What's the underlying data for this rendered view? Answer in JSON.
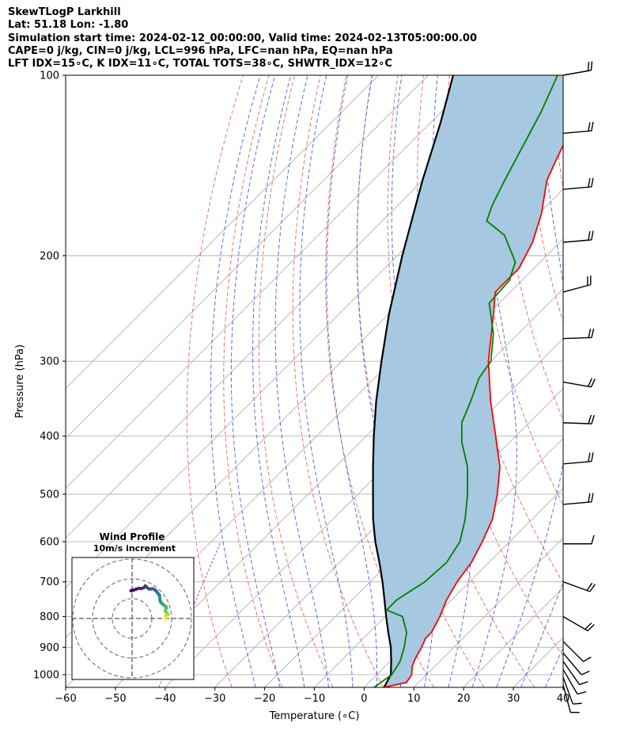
{
  "header": {
    "line1": "SkewTLogP Larkhill",
    "line2": "Lat: 51.18   Lon: -1.80",
    "line3": "Simulation start time: 2024-02-12_00:00:00, Valid time: 2024-02-13T05:00:00.00",
    "line4": "CAPE=0 j/kg, CIN=0 j/kg, LCL=996 hPa, LFC=nan hPa, EQ=nan hPa",
    "line5": "LFT IDX=15∘C, K IDX=11∘C, TOTAL TOTS=38∘C, SHWTR_IDX=12∘C"
  },
  "chart_data": [
    {
      "type": "line",
      "subtype": "skew-t log-p",
      "xlabel": "Temperature (∘C)",
      "ylabel": "Pressure (hPa)",
      "x_ticks": [
        -60,
        -50,
        -40,
        -30,
        -20,
        -10,
        0,
        10,
        20,
        30,
        40
      ],
      "x_tick_labels": [
        "−60",
        "−50",
        "−40",
        "−30",
        "−20",
        "−10",
        "0",
        "10",
        "20",
        "30",
        "40"
      ],
      "y_ticks": [
        100,
        200,
        300,
        400,
        500,
        600,
        700,
        800,
        900,
        1000
      ],
      "xlim": [
        -60,
        40
      ],
      "ylim_hpa": [
        1050,
        100
      ],
      "y_scale": "log",
      "grid": true,
      "series": [
        {
          "name": "temperature",
          "color": "#ff0000",
          "points": [
            [
              1050,
              4.0
            ],
            [
              1030,
              7.5
            ],
            [
              1000,
              7.0
            ],
            [
              970,
              5.5
            ],
            [
              940,
              4.5
            ],
            [
              900,
              3.5
            ],
            [
              870,
              2.5
            ],
            [
              850,
              2.5
            ],
            [
              800,
              1.0
            ],
            [
              750,
              -1.0
            ],
            [
              700,
              -2.5
            ],
            [
              650,
              -3.5
            ],
            [
              600,
              -5.5
            ],
            [
              550,
              -8.0
            ],
            [
              500,
              -12.0
            ],
            [
              450,
              -17.0
            ],
            [
              400,
              -24.0
            ],
            [
              350,
              -32.0
            ],
            [
              300,
              -40.5
            ],
            [
              250,
              -49.0
            ],
            [
              230,
              -53.0
            ],
            [
              210,
              -53.0
            ],
            [
              190,
              -55.5
            ],
            [
              170,
              -59.5
            ],
            [
              150,
              -65.0
            ],
            [
              140,
              -67.0
            ],
            [
              130,
              -69.0
            ],
            [
              120,
              -72.0
            ],
            [
              110,
              -76.0
            ],
            [
              100,
              -79.0
            ]
          ]
        },
        {
          "name": "dewpoint",
          "color": "#008000",
          "points": [
            [
              1050,
              2.0
            ],
            [
              1000,
              3.0
            ],
            [
              950,
              2.0
            ],
            [
              900,
              0.0
            ],
            [
              850,
              -2.5
            ],
            [
              800,
              -6.5
            ],
            [
              780,
              -11.0
            ],
            [
              750,
              -11.0
            ],
            [
              700,
              -9.0
            ],
            [
              650,
              -8.5
            ],
            [
              600,
              -10.0
            ],
            [
              550,
              -13.5
            ],
            [
              500,
              -18.0
            ],
            [
              450,
              -23.5
            ],
            [
              410,
              -29.5
            ],
            [
              380,
              -33.5
            ],
            [
              350,
              -36.0
            ],
            [
              320,
              -39.0
            ],
            [
              300,
              -40.0
            ],
            [
              270,
              -45.0
            ],
            [
              240,
              -52.0
            ],
            [
              220,
              -52.5
            ],
            [
              205,
              -55.0
            ],
            [
              185,
              -62.5
            ],
            [
              175,
              -69.0
            ],
            [
              165,
              -71.0
            ],
            [
              150,
              -73.5
            ],
            [
              130,
              -77.0
            ],
            [
              115,
              -80.0
            ],
            [
              100,
              -84.0
            ]
          ]
        },
        {
          "name": "parcel",
          "color": "#000000",
          "points": [
            [
              1050,
              4.0
            ],
            [
              1000,
              2.8
            ],
            [
              950,
              0.2
            ],
            [
              900,
              -2.7
            ],
            [
              850,
              -6.2
            ],
            [
              800,
              -9.8
            ],
            [
              750,
              -13.5
            ],
            [
              700,
              -17.5
            ],
            [
              650,
              -22.0
            ],
            [
              600,
              -27.0
            ],
            [
              550,
              -32.0
            ],
            [
              500,
              -37.0
            ],
            [
              450,
              -42.5
            ],
            [
              400,
              -48.5
            ],
            [
              350,
              -55.0
            ],
            [
              300,
              -62.0
            ],
            [
              250,
              -70.0
            ],
            [
              200,
              -79.0
            ],
            [
              150,
              -90.0
            ],
            [
              120,
              -98.0
            ],
            [
              100,
              -105.0
            ]
          ]
        }
      ],
      "cin_fill_color": "#a6c8e0",
      "background_lines": {
        "isotherms": {
          "color": "#b0b0b0",
          "values_c": [
            -120,
            -110,
            -100,
            -90,
            -80,
            -70,
            -60,
            -50,
            -40,
            -30,
            -20,
            -10,
            0,
            10,
            20,
            30,
            40
          ]
        },
        "dry_adiabats": {
          "color": "#f07070",
          "theta_c": [
            -30,
            -20,
            -10,
            0,
            10,
            20,
            30,
            40,
            50,
            60,
            70,
            80,
            90,
            100,
            110,
            120
          ]
        },
        "moist_adiabats": {
          "color": "#5a6cf0",
          "t1000_c": [
            -25,
            -20,
            -15,
            -10,
            -5,
            0,
            5,
            10,
            15,
            20,
            25,
            30,
            35
          ]
        },
        "mixing_ratio": {
          "color": "#a050c0"
        }
      },
      "wind_barbs": [
        {
          "p": 100,
          "speed_kt": 20,
          "dir_deg": 260
        },
        {
          "p": 125,
          "speed_kt": 20,
          "dir_deg": 265
        },
        {
          "p": 155,
          "speed_kt": 20,
          "dir_deg": 265
        },
        {
          "p": 190,
          "speed_kt": 20,
          "dir_deg": 265
        },
        {
          "p": 230,
          "speed_kt": 20,
          "dir_deg": 255
        },
        {
          "p": 275,
          "speed_kt": 20,
          "dir_deg": 268
        },
        {
          "p": 325,
          "speed_kt": 20,
          "dir_deg": 280
        },
        {
          "p": 380,
          "speed_kt": 20,
          "dir_deg": 272
        },
        {
          "p": 445,
          "speed_kt": 20,
          "dir_deg": 265
        },
        {
          "p": 520,
          "speed_kt": 20,
          "dir_deg": 265
        },
        {
          "p": 605,
          "speed_kt": 10,
          "dir_deg": 270
        },
        {
          "p": 700,
          "speed_kt": 20,
          "dir_deg": 290
        },
        {
          "p": 800,
          "speed_kt": 20,
          "dir_deg": 300
        },
        {
          "p": 880,
          "speed_kt": 10,
          "dir_deg": 315
        },
        {
          "p": 920,
          "speed_kt": 10,
          "dir_deg": 320
        },
        {
          "p": 950,
          "speed_kt": 10,
          "dir_deg": 325
        },
        {
          "p": 980,
          "speed_kt": 10,
          "dir_deg": 330
        },
        {
          "p": 1010,
          "speed_kt": 10,
          "dir_deg": 340
        },
        {
          "p": 1040,
          "speed_kt": 10,
          "dir_deg": 345
        }
      ]
    },
    {
      "type": "scatter",
      "subtype": "hodograph",
      "title": "Wind Profile",
      "subtitle": "10m/s increment",
      "ring_interval_ms": 10,
      "rings": 3,
      "colormap": "viridis",
      "points": [
        [
          -0.5,
          14.0
        ],
        [
          0.8,
          14.3
        ],
        [
          2.1,
          14.8
        ],
        [
          3.4,
          15.2
        ],
        [
          4.6,
          15.1
        ],
        [
          5.8,
          15.5
        ],
        [
          6.7,
          16.4
        ],
        [
          7.4,
          15.8
        ],
        [
          8.4,
          15.0
        ],
        [
          9.5,
          14.9
        ],
        [
          10.6,
          15.0
        ],
        [
          11.6,
          14.4
        ],
        [
          12.4,
          13.6
        ],
        [
          13.0,
          12.8
        ],
        [
          13.5,
          12.1
        ],
        [
          13.9,
          11.5
        ],
        [
          14.0,
          10.2
        ],
        [
          14.2,
          9.0
        ],
        [
          14.5,
          8.2
        ],
        [
          15.0,
          7.7
        ],
        [
          15.6,
          7.2
        ],
        [
          16.0,
          6.8
        ],
        [
          16.6,
          6.2
        ],
        [
          17.2,
          6.0
        ],
        [
          17.4,
          5.3
        ],
        [
          17.0,
          4.5
        ],
        [
          16.8,
          3.6
        ],
        [
          17.4,
          3.0
        ],
        [
          17.8,
          2.5
        ],
        [
          18.2,
          2.0
        ],
        [
          17.6,
          1.6
        ],
        [
          17.0,
          1.2
        ],
        [
          16.9,
          0.6
        ],
        [
          16.8,
          0.2
        ],
        [
          17.1,
          -0.2
        ]
      ]
    }
  ]
}
